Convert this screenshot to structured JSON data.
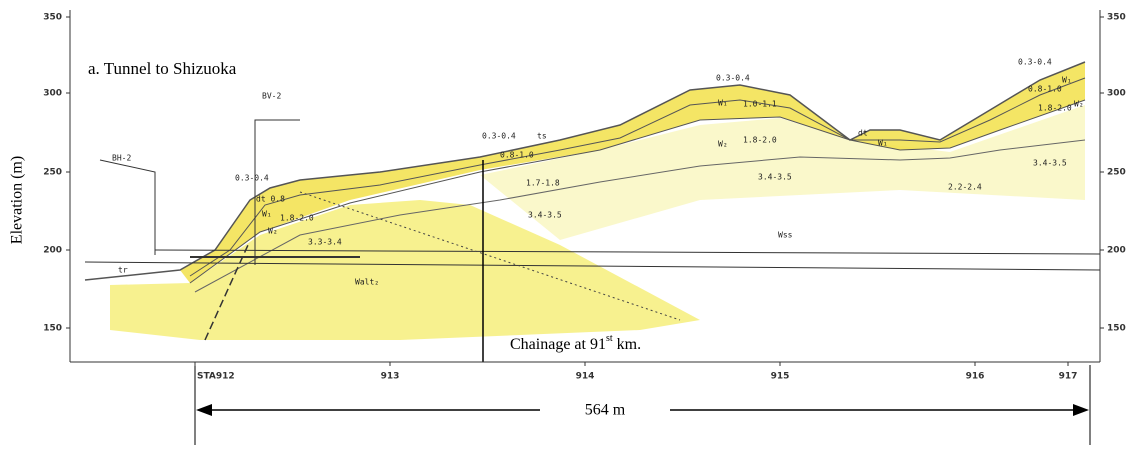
{
  "title": "a. Tunnel to Shizuoka",
  "y_axis": {
    "label": "Elevation (m)",
    "left_ticks": [
      "350",
      "300",
      "250",
      "200",
      "150"
    ],
    "right_ticks": [
      "350",
      "300",
      "250",
      "200",
      "150"
    ]
  },
  "x_axis": {
    "ticks": [
      "STA912",
      "913",
      "914",
      "915",
      "916",
      "917"
    ]
  },
  "boreholes": [
    "BH-2",
    "BV-2"
  ],
  "chainage": {
    "text": "Chainage at 91",
    "superscript": "st",
    "suffix": " km."
  },
  "dimension": "564 m",
  "layer_labels": [
    "0.3-0.4",
    "dt 0.8",
    "W₁",
    "W₂",
    "1.8-2.0",
    "3.3-3.4",
    "Walt₂",
    "tr",
    "0.3-0.4",
    "ts",
    "0.8-1.0",
    "1.7-1.8",
    "3.4-3.5",
    "0.3-0.4",
    "W₁",
    "1.0-1.1",
    "W₂",
    "1.8-2.0",
    "3.4-3.5",
    "Wss",
    "dt",
    "W₁",
    "2.2-2.4",
    "3.4-3.5",
    "0.3-0.4",
    "0.8-1.0",
    "W₁",
    "1.8-2.0",
    "W₂"
  ]
}
